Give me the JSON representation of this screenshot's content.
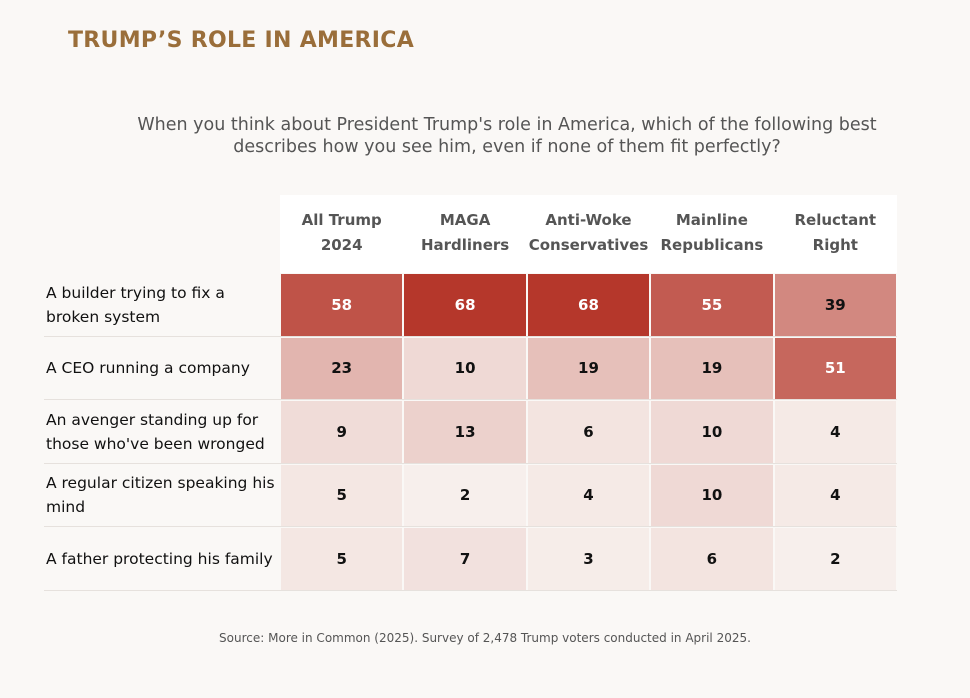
{
  "chart_data": {
    "type": "heatmap",
    "title": "Trump’s Role in America",
    "subtitle": "When you think about President Trump's role in America, which of the following best describes how you see him, even if none of them fit perfectly?",
    "columns": [
      "All Trump 2024",
      "MAGA Hardliners",
      "Anti-Woke Conservatives",
      "Mainline Republicans",
      "Reluctant Right"
    ],
    "rows": [
      "A builder trying to fix a broken system",
      "A CEO running a company",
      "An avenger standing up for those who've been wronged",
      "A regular citizen speaking his mind",
      "A father protecting his family"
    ],
    "values": [
      [
        58,
        68,
        68,
        55,
        39
      ],
      [
        23,
        10,
        19,
        19,
        51
      ],
      [
        9,
        13,
        6,
        10,
        4
      ],
      [
        5,
        2,
        4,
        10,
        4
      ],
      [
        5,
        7,
        3,
        6,
        2
      ]
    ],
    "low_color": "#f9f5f2",
    "high_color": "#b5372b",
    "source": "Source: More in Common (2025). Survey of 2,478 Trump voters conducted in April 2025."
  }
}
